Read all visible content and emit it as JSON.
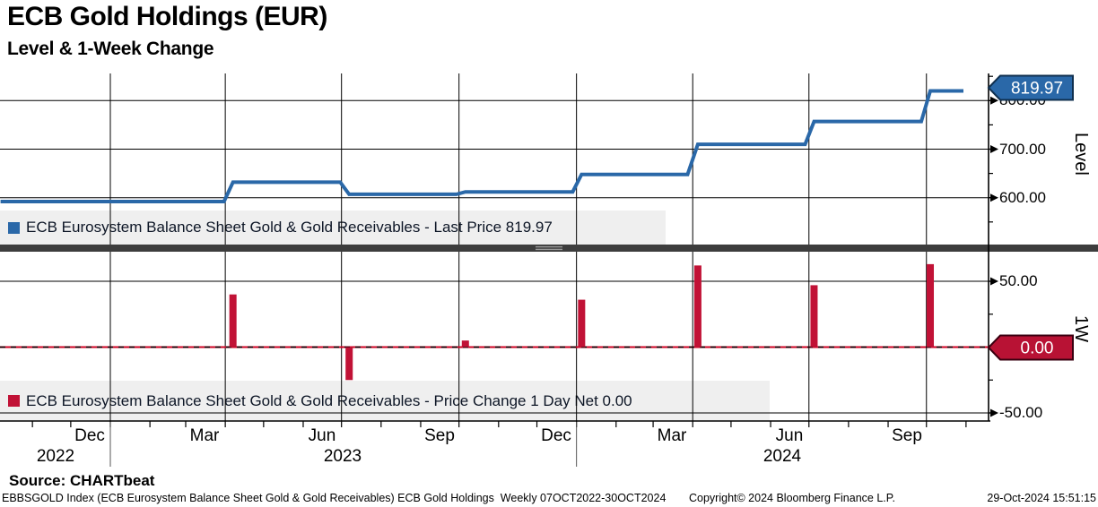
{
  "header": {
    "title": "ECB Gold Holdings (EUR)",
    "subtitle": "Level & 1-Week Change"
  },
  "level_panel": {
    "axis_title": "Level",
    "last_price_tag": "819.97",
    "legend": {
      "label": "ECB Eurosystem Balance Sheet Gold & Gold Receivables - Last Price 819.97"
    }
  },
  "change_panel": {
    "axis_title": "1W",
    "last_value_tag": "0.00",
    "legend": {
      "label": "ECB Eurosystem Balance Sheet Gold & Gold Receivables - Price Change 1 Day Net 0.00"
    }
  },
  "footer": {
    "source": "Source: CHARTbeat",
    "description": "EBBSGOLD Index (ECB Eurosystem Balance Sheet Gold & Gold Receivables) ECB Gold Holdings  Weekly 07OCT2022-30OCT2024",
    "copyright": "Copyright© 2024 Bloomberg Finance L.P.",
    "timestamp": "29-Oct-2024 15:51:15"
  },
  "colors": {
    "line_blue": "#2A68A8",
    "tag_blue_border": "#10304F",
    "bar_red": "#C11236",
    "tag_red": "#B81234",
    "tag_red_border": "#3a0010",
    "separator": "#3d3d3d",
    "legend_bg": "#efefef",
    "grid": "#000000"
  },
  "chart_data": [
    {
      "type": "line",
      "name": "Level",
      "step": true,
      "series": [
        {
          "name": "ECB Eurosystem Balance Sheet Gold & Gold Receivables - Last Price",
          "points": [
            [
              "2022-10-07",
              592
            ],
            [
              "2023-03-31",
              592
            ],
            [
              "2023-04-07",
              632
            ],
            [
              "2023-06-30",
              632
            ],
            [
              "2023-07-07",
              607
            ],
            [
              "2023-09-29",
              607
            ],
            [
              "2023-10-06",
              612
            ],
            [
              "2023-12-29",
              612
            ],
            [
              "2024-01-05",
              648
            ],
            [
              "2024-03-28",
              648
            ],
            [
              "2024-04-05",
              710
            ],
            [
              "2024-06-28",
              710
            ],
            [
              "2024-07-05",
              757
            ],
            [
              "2024-09-27",
              757
            ],
            [
              "2024-10-04",
              819.97
            ],
            [
              "2024-10-30",
              819.97
            ]
          ]
        }
      ],
      "last_price": 819.97,
      "ylabel": "Level",
      "ylim": [
        548,
        845
      ],
      "yticks": [
        {
          "v": 800,
          "label": "800.00"
        },
        {
          "v": 700,
          "label": "700.00"
        },
        {
          "v": 600,
          "label": "600.00"
        }
      ],
      "minor_yticks": [
        850,
        750,
        650,
        550
      ],
      "legend_position": "bottom-left"
    },
    {
      "type": "bar",
      "name": "1W Change",
      "series": [
        {
          "name": "ECB Eurosystem Balance Sheet Gold & Gold Receivables - Price Change 1 Day Net",
          "bars": [
            {
              "date": "2023-04-07",
              "value": 40
            },
            {
              "date": "2023-07-07",
              "value": -25
            },
            {
              "date": "2023-10-06",
              "value": 5
            },
            {
              "date": "2024-01-05",
              "value": 36
            },
            {
              "date": "2024-04-05",
              "value": 62
            },
            {
              "date": "2024-07-05",
              "value": 47
            },
            {
              "date": "2024-10-04",
              "value": 63
            }
          ]
        }
      ],
      "last_value": 0.0,
      "ylabel": "1W",
      "ylim": [
        -57,
        76
      ],
      "yticks": [
        {
          "v": 50,
          "label": "50.00"
        },
        {
          "v": -50,
          "label": "-50.00"
        }
      ],
      "minor_yticks": [
        25,
        -25
      ],
      "zero_line": true,
      "legend_position": "bottom-left"
    }
  ],
  "xaxis": {
    "range": [
      "2022-10-07",
      "2024-10-30"
    ],
    "frequency": "Weekly",
    "months": [
      {
        "label": "Dec",
        "center_date": "2022-12-16"
      },
      {
        "label": "Mar",
        "center_date": "2023-03-16"
      },
      {
        "label": "Jun",
        "center_date": "2023-06-16"
      },
      {
        "label": "Sep",
        "center_date": "2023-09-16"
      },
      {
        "label": "Dec",
        "center_date": "2023-12-16"
      },
      {
        "label": "Mar",
        "center_date": "2024-03-16"
      },
      {
        "label": "Jun",
        "center_date": "2024-06-16"
      },
      {
        "label": "Sep",
        "center_date": "2024-09-16"
      }
    ],
    "years": [
      {
        "label": "2022",
        "center_date": "2022-11-19"
      },
      {
        "label": "2023",
        "center_date": "2023-07-02"
      },
      {
        "label": "2024",
        "center_date": "2024-06-10"
      }
    ],
    "quarter_gridline_dates": [
      "2023-01-01",
      "2023-04-01",
      "2023-07-01",
      "2023-10-01",
      "2024-01-01",
      "2024-04-01",
      "2024-07-01",
      "2024-10-01"
    ],
    "year_divider_dates": [
      "2023-01-01",
      "2024-01-01"
    ]
  }
}
